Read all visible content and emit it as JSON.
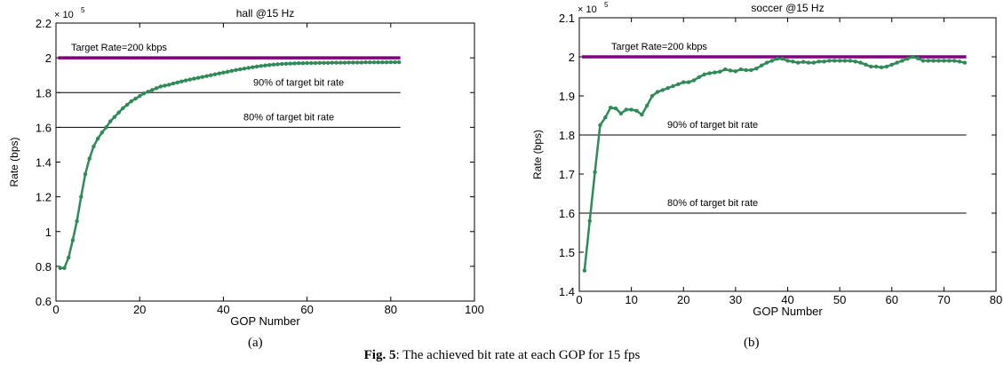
{
  "figure": {
    "caption_a": "(a)",
    "caption_b": "(b)",
    "fig_label": "Fig. 5",
    "fig_text": ": The achieved bit rate at each GOP for 15 fps"
  },
  "chart_data": [
    {
      "type": "line",
      "title": "hall @15 Hz",
      "xlabel": "GOP Number",
      "ylabel": "Rate (bps)",
      "y_multiplier": "× 10",
      "y_exponent": "5",
      "xlim": [
        0,
        100
      ],
      "ylim": [
        0.6,
        2.2
      ],
      "xticks": [
        0,
        20,
        40,
        60,
        80,
        100
      ],
      "yticks": [
        0.6,
        0.8,
        1,
        1.2,
        1.4,
        1.6,
        1.8,
        2,
        2.2
      ],
      "ytick_labels": [
        "0.6",
        "0.8",
        "1",
        "1.2",
        "1.4",
        "1.6",
        "1.8",
        "2",
        "2.2"
      ],
      "grid": false,
      "reference_lines": [
        {
          "value": 2.0,
          "label": "Target Rate=200 kbps",
          "color": "#800080"
        },
        {
          "value": 1.8,
          "label": "90% of target bit rate",
          "color": "#000000"
        },
        {
          "value": 1.6,
          "label": "80% of target bit rate",
          "color": "#000000"
        }
      ],
      "series": [
        {
          "color": "#2e8b57",
          "x": [
            1,
            2,
            3,
            4,
            5,
            6,
            7,
            8,
            9,
            10,
            11,
            12,
            13,
            14,
            15,
            16,
            17,
            18,
            19,
            20,
            21,
            22,
            23,
            24,
            25,
            26,
            27,
            28,
            29,
            30,
            31,
            32,
            33,
            34,
            35,
            36,
            37,
            38,
            39,
            40,
            41,
            42,
            43,
            44,
            45,
            46,
            47,
            48,
            49,
            50,
            51,
            52,
            53,
            54,
            55,
            56,
            57,
            58,
            59,
            60,
            61,
            62,
            63,
            64,
            65,
            66,
            67,
            68,
            69,
            70,
            71,
            72,
            73,
            74,
            75,
            76,
            77,
            78,
            79,
            80,
            81,
            82
          ],
          "y": [
            0.79,
            0.79,
            0.85,
            0.95,
            1.06,
            1.2,
            1.33,
            1.42,
            1.49,
            1.535,
            1.57,
            1.6,
            1.635,
            1.66,
            1.685,
            1.71,
            1.73,
            1.75,
            1.765,
            1.78,
            1.795,
            1.805,
            1.815,
            1.825,
            1.835,
            1.84,
            1.845,
            1.852,
            1.858,
            1.864,
            1.87,
            1.875,
            1.88,
            1.885,
            1.89,
            1.895,
            1.9,
            1.905,
            1.91,
            1.915,
            1.92,
            1.925,
            1.93,
            1.934,
            1.938,
            1.942,
            1.946,
            1.95,
            1.953,
            1.956,
            1.959,
            1.961,
            1.963,
            1.965,
            1.966,
            1.967,
            1.968,
            1.969,
            1.969,
            1.97,
            1.97,
            1.97,
            1.971,
            1.971,
            1.971,
            1.972,
            1.972,
            1.972,
            1.972,
            1.973,
            1.973,
            1.973,
            1.973,
            1.974,
            1.974,
            1.974,
            1.974,
            1.974,
            1.974,
            1.975,
            1.975,
            1.975
          ]
        }
      ]
    },
    {
      "type": "line",
      "title": "soccer @15 Hz",
      "xlabel": "GOP Number",
      "ylabel": "Rate (bps)",
      "y_multiplier": "× 10",
      "y_exponent": "5",
      "xlim": [
        0,
        80
      ],
      "ylim": [
        1.4,
        2.1
      ],
      "xticks": [
        0,
        10,
        20,
        30,
        40,
        50,
        60,
        70,
        80
      ],
      "yticks": [
        1.4,
        1.5,
        1.6,
        1.7,
        1.8,
        1.9,
        2,
        2.1
      ],
      "ytick_labels": [
        "1.4",
        "1.5",
        "1.6",
        "1.7",
        "1.8",
        "1.9",
        "2",
        "2.1"
      ],
      "grid": false,
      "reference_lines": [
        {
          "value": 2.0,
          "label": "Target Rate=200 kbps",
          "color": "#800080"
        },
        {
          "value": 1.8,
          "label": "90% of target bit rate",
          "color": "#000000"
        },
        {
          "value": 1.6,
          "label": "80% of target bit rate",
          "color": "#000000"
        }
      ],
      "series": [
        {
          "color": "#2e8b57",
          "x": [
            1,
            2,
            3,
            4,
            5,
            6,
            7,
            8,
            9,
            10,
            11,
            12,
            13,
            14,
            15,
            16,
            17,
            18,
            19,
            20,
            21,
            22,
            23,
            24,
            25,
            26,
            27,
            28,
            29,
            30,
            31,
            32,
            33,
            34,
            35,
            36,
            37,
            38,
            39,
            40,
            41,
            42,
            43,
            44,
            45,
            46,
            47,
            48,
            49,
            50,
            51,
            52,
            53,
            54,
            55,
            56,
            57,
            58,
            59,
            60,
            61,
            62,
            63,
            64,
            65,
            66,
            67,
            68,
            69,
            70,
            71,
            72,
            73,
            74
          ],
          "y": [
            1.453,
            1.58,
            1.705,
            1.825,
            1.845,
            1.87,
            1.868,
            1.855,
            1.865,
            1.865,
            1.862,
            1.852,
            1.875,
            1.9,
            1.91,
            1.915,
            1.92,
            1.925,
            1.93,
            1.935,
            1.935,
            1.94,
            1.948,
            1.955,
            1.958,
            1.96,
            1.962,
            1.968,
            1.965,
            1.963,
            1.968,
            1.966,
            1.966,
            1.97,
            1.978,
            1.985,
            1.99,
            1.995,
            1.995,
            1.99,
            1.988,
            1.985,
            1.987,
            1.985,
            1.985,
            1.988,
            1.988,
            1.99,
            1.99,
            1.99,
            1.99,
            1.99,
            1.988,
            1.985,
            1.98,
            1.975,
            1.975,
            1.973,
            1.975,
            1.98,
            1.985,
            1.99,
            1.995,
            2.0,
            1.996,
            1.99,
            1.99,
            1.99,
            1.99,
            1.99,
            1.99,
            1.99,
            1.988,
            1.985
          ]
        }
      ]
    }
  ]
}
